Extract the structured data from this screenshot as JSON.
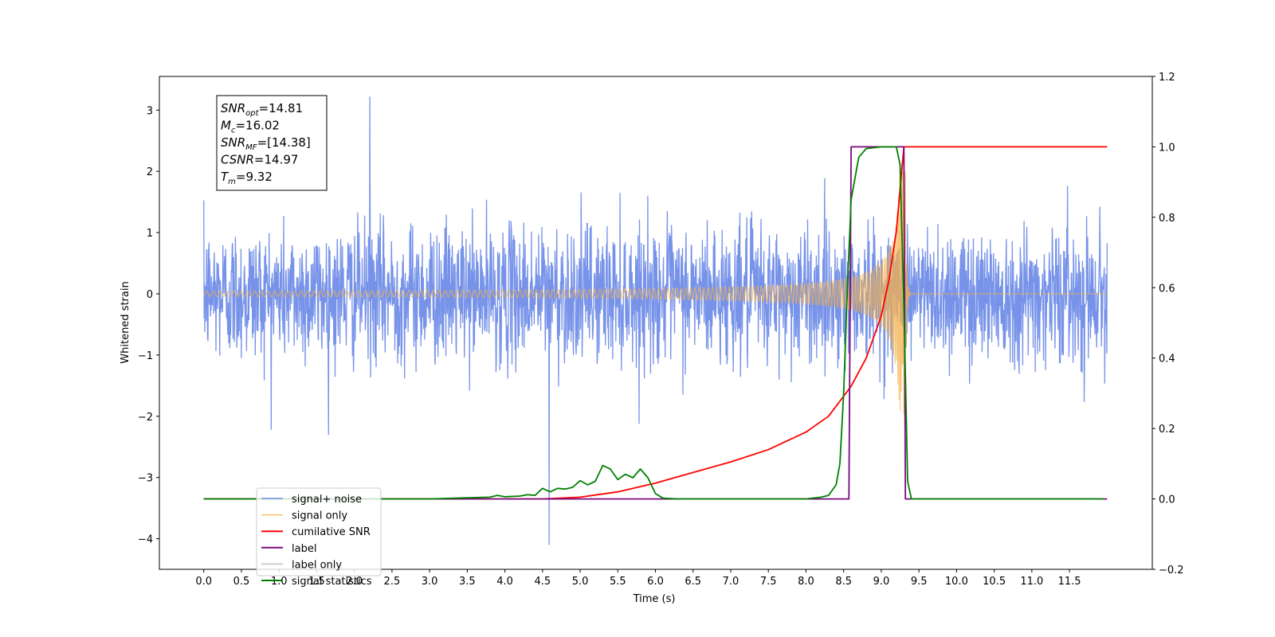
{
  "chart_data": {
    "type": "line",
    "title": "",
    "xlabel": "Time (s)",
    "ylabel": "Whitened strain",
    "y2label": "",
    "xlim": [
      -0.59,
      12.6
    ],
    "ylim": [
      -4.5,
      3.55
    ],
    "y2lim": [
      -0.2,
      1.2
    ],
    "x_ticks": [
      "0.0",
      "0.5",
      "1.0",
      "1.5",
      "2.0",
      "2.5",
      "3.0",
      "3.5",
      "4.0",
      "4.5",
      "5.0",
      "5.5",
      "6.0",
      "6.5",
      "7.0",
      "7.5",
      "8.0",
      "8.5",
      "9.0",
      "9.5",
      "10.0",
      "10.5",
      "11.0",
      "11.5"
    ],
    "y_ticks": [
      "3",
      "2",
      "1",
      "0",
      "−1",
      "−2",
      "−3",
      "−4"
    ],
    "y2_ticks": [
      "1.2",
      "1.0",
      "0.8",
      "0.6",
      "0.4",
      "0.2",
      "0.0",
      "−0.2"
    ],
    "grid": false,
    "legend_position": "lower-left",
    "info_box": {
      "lines": [
        {
          "main": "SNR",
          "sub": "opt",
          "value": "=14.81"
        },
        {
          "main": "M",
          "sub": "c",
          "value": "=16.02"
        },
        {
          "main": "SNR",
          "sub": "MF",
          "value": "=[14.38]"
        },
        {
          "main": "CSNR",
          "sub": "",
          "value": "=14.97"
        },
        {
          "main": "T",
          "sub": "m",
          "value": "=9.32"
        }
      ]
    },
    "series": [
      {
        "name": "signal+ noise",
        "color": "#5578e3",
        "axis": "left",
        "style": "dense noise band",
        "x_range": [
          0.0,
          12.0
        ],
        "typical_amplitude": 1.2,
        "peak_max": 3.22,
        "peak_min": -4.1
      },
      {
        "name": "signal only",
        "color": "#f5b04a",
        "axis": "left",
        "style": "chirp",
        "x_range": [
          0.0,
          12.0
        ],
        "merger_time": 9.32,
        "peak_amplitude": 2.0
      },
      {
        "name": "cumilative SNR",
        "color": "#ff0000",
        "axis": "right",
        "x": [
          0.0,
          4.5,
          5.0,
          5.5,
          6.0,
          6.5,
          7.0,
          7.5,
          8.0,
          8.3,
          8.6,
          8.8,
          9.0,
          9.1,
          9.2,
          9.3,
          12.0
        ],
        "y": [
          0.0,
          0.0,
          0.005,
          0.02,
          0.045,
          0.075,
          0.105,
          0.14,
          0.19,
          0.235,
          0.32,
          0.4,
          0.52,
          0.62,
          0.76,
          1.0,
          1.0
        ]
      },
      {
        "name": "label",
        "color": "#7b0a7b",
        "axis": "right",
        "x": [
          0.0,
          8.57,
          8.6,
          9.3,
          9.32,
          12.0
        ],
        "y": [
          0.0,
          0.0,
          1.0,
          1.0,
          0.0,
          0.0
        ]
      },
      {
        "name": "label only",
        "color": "#cccccc",
        "axis": "right",
        "x": [],
        "y": []
      },
      {
        "name": "signal statistics",
        "color": "#008000",
        "axis": "right",
        "x": [
          0.0,
          3.0,
          3.5,
          3.8,
          3.9,
          4.0,
          4.2,
          4.3,
          4.4,
          4.5,
          4.6,
          4.7,
          4.8,
          4.9,
          5.0,
          5.1,
          5.2,
          5.3,
          5.4,
          5.5,
          5.6,
          5.7,
          5.8,
          5.9,
          6.0,
          6.1,
          6.3,
          8.0,
          8.2,
          8.3,
          8.4,
          8.45,
          8.5,
          8.55,
          8.6,
          8.7,
          8.8,
          9.0,
          9.2,
          9.25,
          9.3,
          9.35,
          9.4,
          11.95
        ],
        "y": [
          0.0,
          0.0,
          0.003,
          0.005,
          0.01,
          0.006,
          0.008,
          0.012,
          0.01,
          0.03,
          0.02,
          0.03,
          0.028,
          0.033,
          0.052,
          0.04,
          0.05,
          0.095,
          0.085,
          0.055,
          0.07,
          0.06,
          0.085,
          0.06,
          0.015,
          0.002,
          0.0,
          0.0,
          0.005,
          0.01,
          0.04,
          0.1,
          0.3,
          0.6,
          0.85,
          0.97,
          0.995,
          1.0,
          1.0,
          0.95,
          0.55,
          0.05,
          0.0,
          0.0
        ]
      }
    ]
  }
}
